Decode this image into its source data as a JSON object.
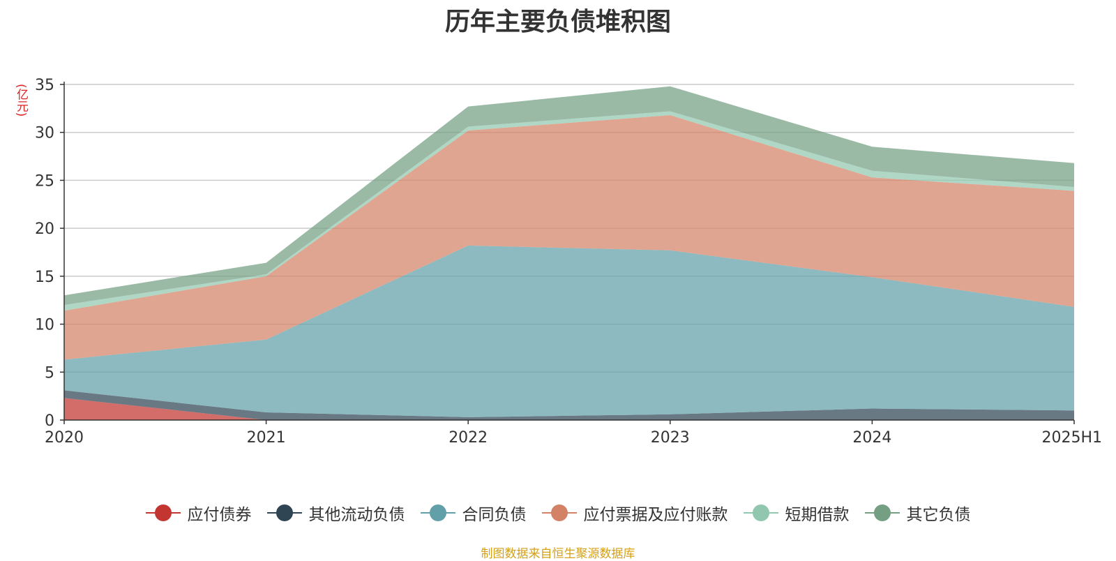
{
  "title": "历年主要负债堆积图",
  "source_note": "制图数据来自恒生聚源数据库",
  "chart_data": {
    "type": "area",
    "stacked": true,
    "title": "历年主要负债堆积图",
    "y_unit": "(亿元)",
    "categories": [
      "2020",
      "2021",
      "2022",
      "2023",
      "2024",
      "2025H1"
    ],
    "ylim": [
      0,
      35
    ],
    "yticks": [
      0,
      5,
      10,
      15,
      20,
      25,
      30,
      35
    ],
    "grid": true,
    "legend_position": "bottom",
    "series": [
      {
        "name": "应付债券",
        "color": "#c23531",
        "values": [
          2.3,
          0.0,
          0.0,
          0.0,
          0.0,
          0.0
        ]
      },
      {
        "name": "其他流动负债",
        "color": "#2f4554",
        "values": [
          0.8,
          0.8,
          0.3,
          0.6,
          1.2,
          1.0
        ]
      },
      {
        "name": "合同负债",
        "color": "#61a0a8",
        "values": [
          3.2,
          7.6,
          17.9,
          17.1,
          13.7,
          10.8
        ]
      },
      {
        "name": "应付票据及应付账款",
        "color": "#d48265",
        "values": [
          5.1,
          6.6,
          12.0,
          14.1,
          10.4,
          12.1
        ]
      },
      {
        "name": "短期借款",
        "color": "#91c7ae",
        "values": [
          0.6,
          0.2,
          0.4,
          0.4,
          0.7,
          0.4
        ]
      },
      {
        "name": "其它负债",
        "color": "#749f83",
        "values": [
          1.0,
          1.2,
          2.1,
          2.6,
          2.5,
          2.5
        ]
      }
    ]
  }
}
